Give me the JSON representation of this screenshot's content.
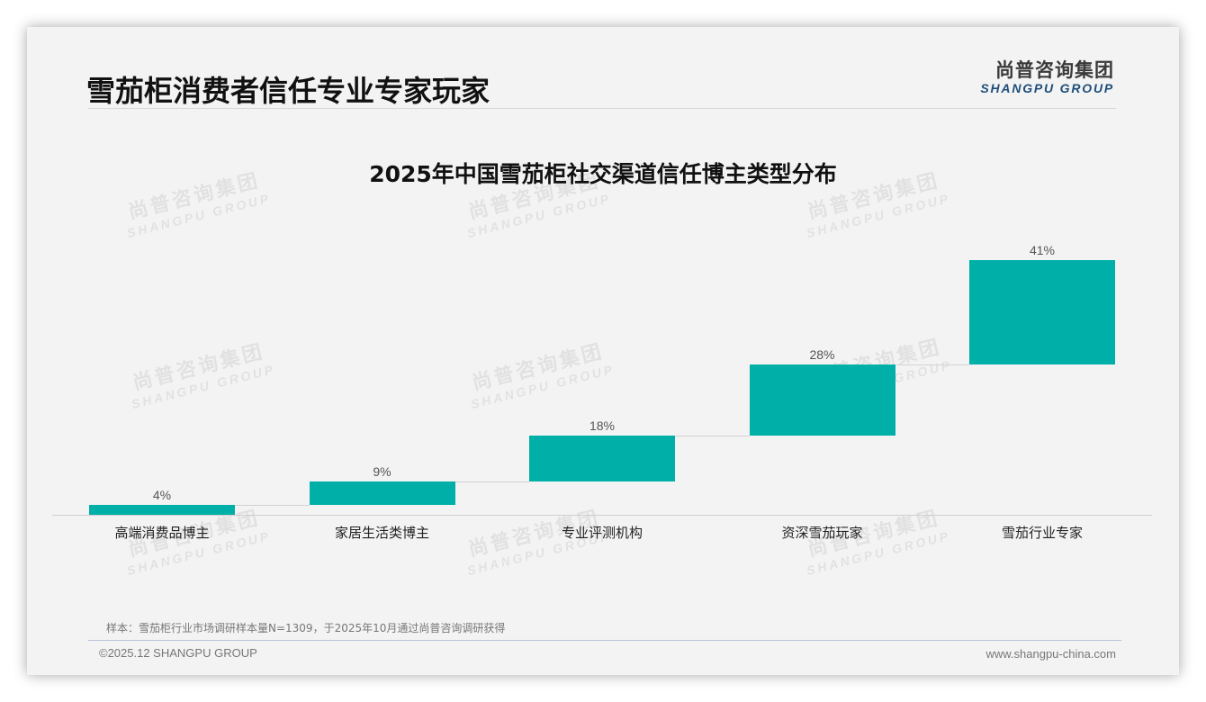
{
  "header": {
    "page_title": "雪茄柜消费者信任专业专家玩家",
    "logo_cn": "尚普咨询集团",
    "logo_en": "SHANGPU GROUP"
  },
  "watermark": {
    "cn": "尚普咨询集团",
    "en": "SHANGPU GROUP"
  },
  "chart_data": {
    "type": "bar",
    "subtype": "waterfall",
    "title": "2025年中国雪茄柜社交渠道信任博主类型分布",
    "categories": [
      "高端消费品博主",
      "家居生活类博主",
      "专业评测机构",
      "资深雪茄玩家",
      "雪茄行业专家"
    ],
    "values": [
      4,
      9,
      18,
      28,
      41
    ],
    "value_labels": [
      "4%",
      "9%",
      "18%",
      "28%",
      "41%"
    ],
    "unit": "%",
    "xlabel": "",
    "ylabel": "",
    "ylim": [
      0,
      100
    ],
    "grid": false,
    "legend": "none",
    "bar_color": "#00b0a8"
  },
  "footer": {
    "note": "样本：雪茄柜行业市场调研样本量N=1309，于2025年10月通过尚普咨询调研获得",
    "copyright": "©2025.12 SHANGPU GROUP",
    "website": "www.shangpu-china.com"
  }
}
